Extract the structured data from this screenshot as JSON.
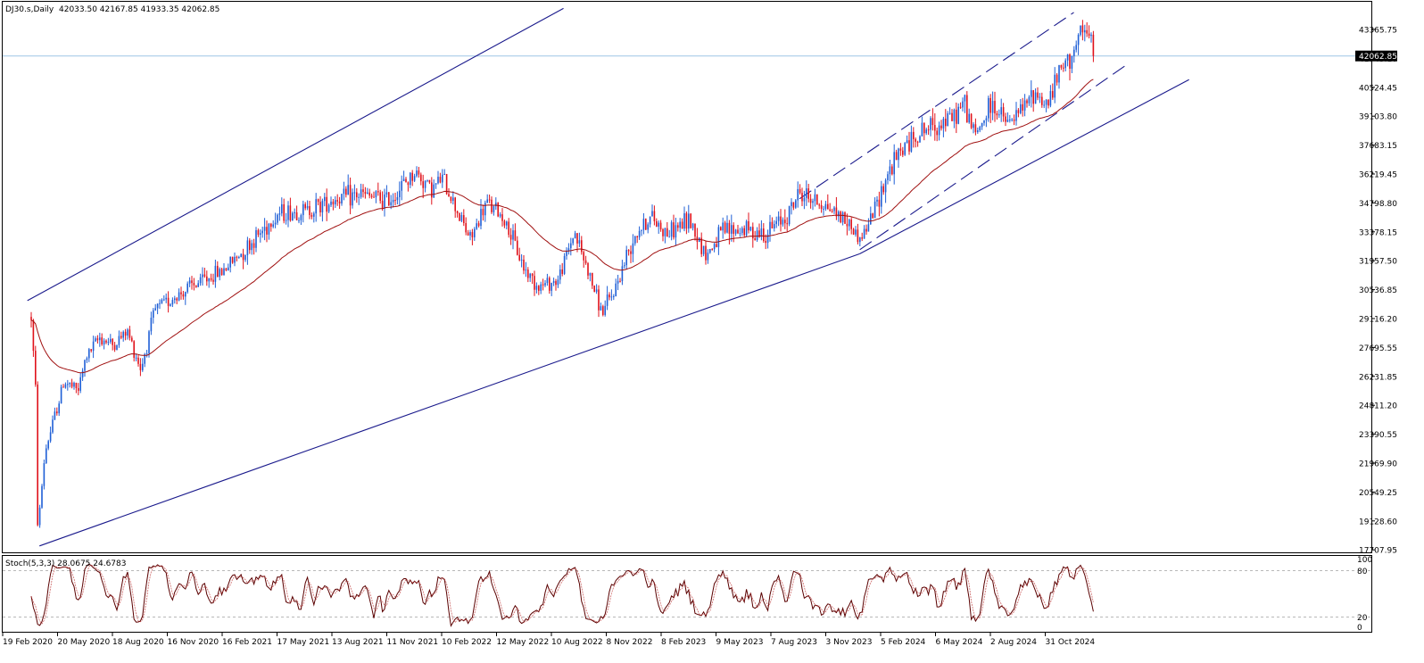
{
  "header": {
    "symbol": "DJ30.s,Daily",
    "ohlc": "42033.50 42167.85 41933.35 42062.85"
  },
  "current_price_label": "42062.85",
  "stoch": {
    "label": "Stoch(5,3,3) 28.0675 24.6783",
    "levels": [
      "100",
      "80",
      "20",
      "0"
    ]
  },
  "colors": {
    "bull": "#1f5fd6",
    "bear": "#e0121b",
    "ma": "#a01010",
    "channel": "#1a1a8c",
    "stoch": "#5a0000",
    "price_line": "#9ec5e6"
  },
  "chart_data": {
    "type": "candlestick",
    "y_ticks": [
      "43365.75",
      "41945.10",
      "40524.45",
      "39103.80",
      "37683.15",
      "36219.45",
      "34798.80",
      "33378.15",
      "31957.50",
      "30536.85",
      "29116.20",
      "27695.55",
      "26231.85",
      "24811.20",
      "23390.55",
      "21969.90",
      "20549.25",
      "19128.60",
      "17707.95"
    ],
    "x_ticks": [
      "19 Feb 2020",
      "20 May 2020",
      "18 Aug 2020",
      "16 Nov 2020",
      "16 Feb 2021",
      "17 May 2021",
      "13 Aug 2021",
      "11 Nov 2021",
      "10 Feb 2022",
      "12 May 2022",
      "10 Aug 2022",
      "8 Nov 2022",
      "8 Feb 2023",
      "9 May 2023",
      "7 Aug 2023",
      "3 Nov 2023",
      "5 Feb 2024",
      "6 May 2024",
      "2 Aug 2024",
      "31 Oct 2024"
    ],
    "y_range": [
      17707.95,
      44400
    ],
    "last_close": 42062.85,
    "price_path": [
      {
        "t": 0,
        "v": 29200
      },
      {
        "t": 0.08,
        "v": 25500
      },
      {
        "t": 0.12,
        "v": 18600
      },
      {
        "t": 0.25,
        "v": 22500
      },
      {
        "t": 0.4,
        "v": 24000
      },
      {
        "t": 0.6,
        "v": 26000
      },
      {
        "t": 0.85,
        "v": 25500
      },
      {
        "t": 1.0,
        "v": 27200
      },
      {
        "t": 1.25,
        "v": 28200
      },
      {
        "t": 1.5,
        "v": 27800
      },
      {
        "t": 1.75,
        "v": 28500
      },
      {
        "t": 2.0,
        "v": 26600
      },
      {
        "t": 2.25,
        "v": 29500
      },
      {
        "t": 2.5,
        "v": 30000
      },
      {
        "t": 3.0,
        "v": 30800
      },
      {
        "t": 3.5,
        "v": 31500
      },
      {
        "t": 4.0,
        "v": 32800
      },
      {
        "t": 4.5,
        "v": 34300
      },
      {
        "t": 5.0,
        "v": 34400
      },
      {
        "t": 5.5,
        "v": 35000
      },
      {
        "t": 6.0,
        "v": 35200
      },
      {
        "t": 6.5,
        "v": 34900
      },
      {
        "t": 7.0,
        "v": 36300
      },
      {
        "t": 7.3,
        "v": 35500
      },
      {
        "t": 7.5,
        "v": 36000
      },
      {
        "t": 7.75,
        "v": 34500
      },
      {
        "t": 8.0,
        "v": 33000
      },
      {
        "t": 8.3,
        "v": 34800
      },
      {
        "t": 8.6,
        "v": 34100
      },
      {
        "t": 9.0,
        "v": 31500
      },
      {
        "t": 9.25,
        "v": 30700
      },
      {
        "t": 9.6,
        "v": 31000
      },
      {
        "t": 9.9,
        "v": 33400
      },
      {
        "t": 10.2,
        "v": 31000
      },
      {
        "t": 10.4,
        "v": 29400
      },
      {
        "t": 10.6,
        "v": 30300
      },
      {
        "t": 11.0,
        "v": 33300
      },
      {
        "t": 11.3,
        "v": 34100
      },
      {
        "t": 11.6,
        "v": 33300
      },
      {
        "t": 12.0,
        "v": 34000
      },
      {
        "t": 12.3,
        "v": 32200
      },
      {
        "t": 12.6,
        "v": 33400
      },
      {
        "t": 13.0,
        "v": 33500
      },
      {
        "t": 13.4,
        "v": 33300
      },
      {
        "t": 13.8,
        "v": 34300
      },
      {
        "t": 14.0,
        "v": 35300
      },
      {
        "t": 14.3,
        "v": 34900
      },
      {
        "t": 14.6,
        "v": 34500
      },
      {
        "t": 14.9,
        "v": 33800
      },
      {
        "t": 15.1,
        "v": 33000
      },
      {
        "t": 15.3,
        "v": 34000
      },
      {
        "t": 15.6,
        "v": 36200
      },
      {
        "t": 15.9,
        "v": 37600
      },
      {
        "t": 16.2,
        "v": 38300
      },
      {
        "t": 16.5,
        "v": 38700
      },
      {
        "t": 16.8,
        "v": 39000
      },
      {
        "t": 17.0,
        "v": 39800
      },
      {
        "t": 17.2,
        "v": 38100
      },
      {
        "t": 17.5,
        "v": 39700
      },
      {
        "t": 17.8,
        "v": 38700
      },
      {
        "t": 18.0,
        "v": 39200
      },
      {
        "t": 18.3,
        "v": 40300
      },
      {
        "t": 18.5,
        "v": 39600
      },
      {
        "t": 18.7,
        "v": 41000
      },
      {
        "t": 18.9,
        "v": 41900
      },
      {
        "t": 19.1,
        "v": 42900
      },
      {
        "t": 19.25,
        "v": 43200
      },
      {
        "t": 19.38,
        "v": 42062.85
      }
    ],
    "channel_lines": [
      {
        "style": "solid",
        "from": {
          "t": -0.07,
          "v": 30000
        },
        "to": {
          "t": 9.7,
          "v": 44400
        }
      },
      {
        "style": "solid",
        "from": {
          "t": 0.15,
          "v": 17900
        },
        "to": {
          "t": 15.1,
          "v": 32300
        }
      },
      {
        "style": "solid",
        "from": {
          "t": 15.1,
          "v": 32300
        },
        "to": {
          "t": 21.1,
          "v": 40900
        }
      },
      {
        "style": "dashed",
        "from": {
          "t": 14.0,
          "v": 35000
        },
        "to": {
          "t": 19.0,
          "v": 44200
        }
      },
      {
        "style": "dashed",
        "from": {
          "t": 15.1,
          "v": 32500
        },
        "to": {
          "t": 20.0,
          "v": 41700
        }
      }
    ]
  }
}
